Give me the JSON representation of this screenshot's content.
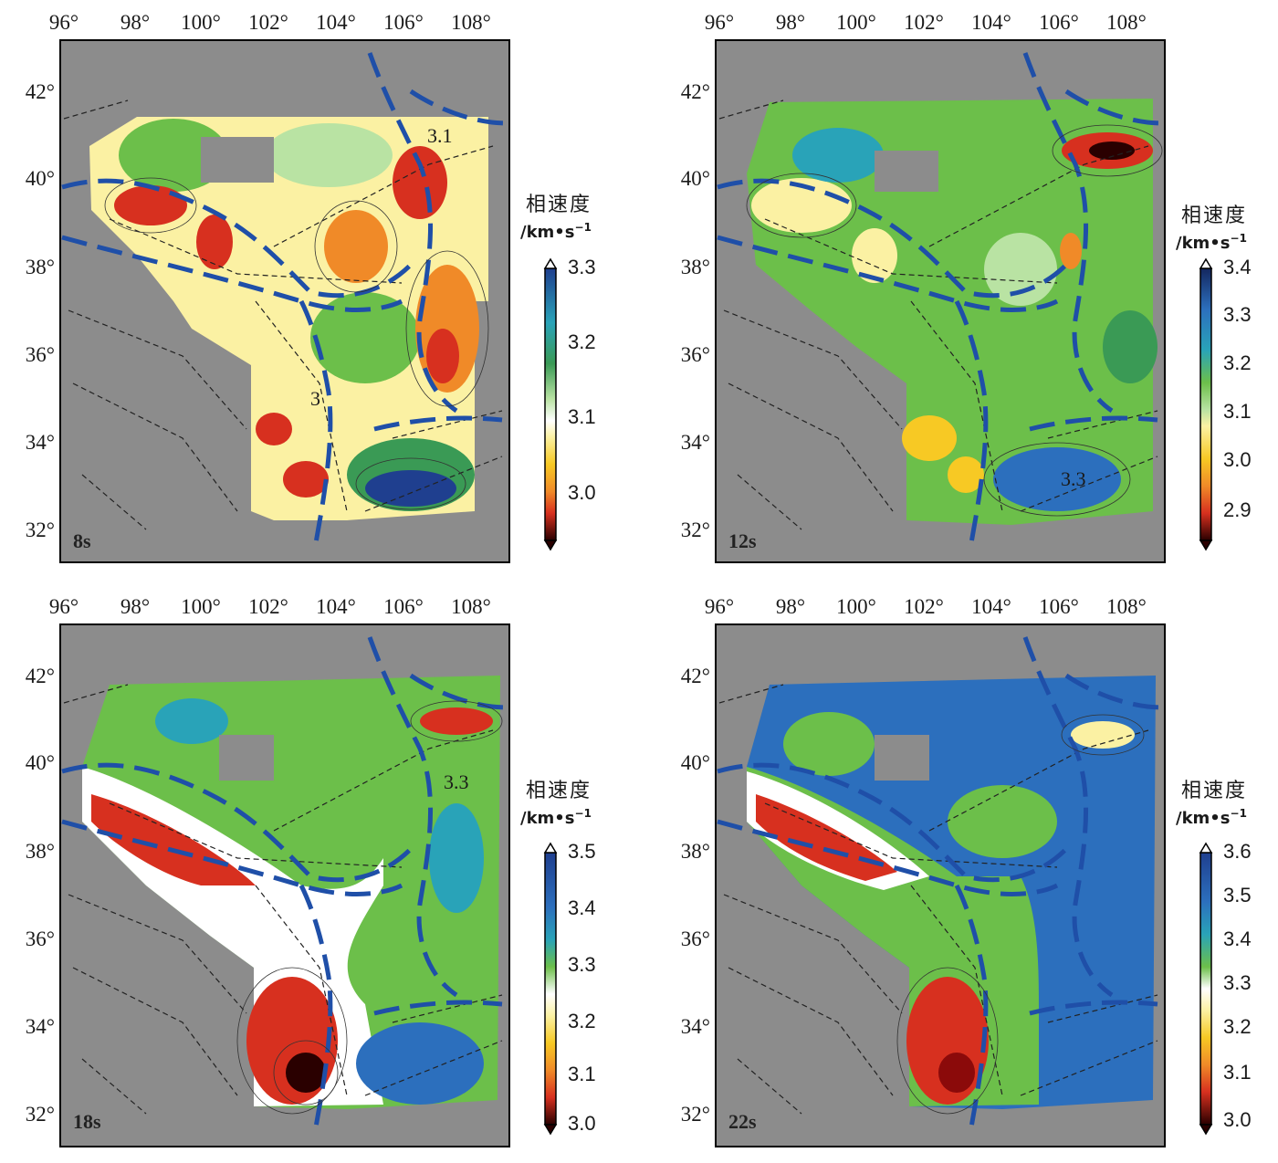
{
  "colorbar_title": "相速度",
  "colorbar_unit": "/km•s",
  "colorbar_unit_exp": "−1",
  "x_ticks": [
    "96°",
    "98°",
    "100°",
    "102°",
    "104°",
    "106°",
    "108°"
  ],
  "y_ticks": [
    "42°",
    "40°",
    "38°",
    "36°",
    "34°",
    "32°"
  ],
  "palette": [
    "#2a0000",
    "#8b0a0a",
    "#d7301f",
    "#f08a28",
    "#f7c924",
    "#fbf1a3",
    "#ffffff",
    "#b9e3a3",
    "#6cbf4a",
    "#3a9a55",
    "#29a3b8",
    "#2c6fbd",
    "#1f3f8f",
    "#14275f"
  ],
  "panels": [
    {
      "period": "8s",
      "colorbar_ticks": [
        "3.3",
        "3.2",
        "3.1",
        "3.0"
      ],
      "contour_labels": [
        "3.1",
        "3"
      ]
    },
    {
      "period": "12s",
      "colorbar_ticks": [
        "3.4",
        "3.3",
        "3.2",
        "3.1",
        "3.0",
        "2.9"
      ],
      "contour_labels": [
        "3.3"
      ]
    },
    {
      "period": "18s",
      "colorbar_ticks": [
        "3.5",
        "3.4",
        "3.3",
        "3.2",
        "3.1",
        "3.0"
      ],
      "contour_labels": [
        "3.3"
      ]
    },
    {
      "period": "22s",
      "colorbar_ticks": [
        "3.6",
        "3.5",
        "3.4",
        "3.3",
        "3.2",
        "3.1",
        "3.0"
      ],
      "contour_labels": []
    }
  ]
}
